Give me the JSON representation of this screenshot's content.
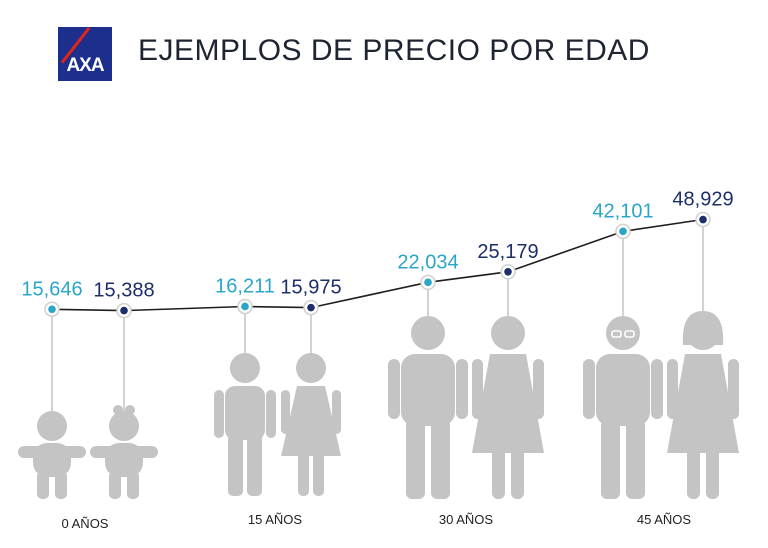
{
  "header": {
    "logo_text": "AXA",
    "title": "EJEMPLOS DE PRECIO POR EDAD"
  },
  "colors": {
    "female": "#2aa6c8",
    "male": "#1d2f6b",
    "line": "#1e1e1e",
    "figure": "#c4c4c4",
    "stem": "#c8c8c8",
    "brand": "#1d2f8c"
  },
  "chart_data": {
    "type": "line",
    "categories": [
      "0 AÑOS",
      "15 AÑOS",
      "30 AÑOS",
      "45 AÑOS"
    ],
    "points": [
      {
        "category": "0 AÑOS",
        "value": 15646,
        "label": "15,646",
        "color": "#2aa6c8",
        "figure": "baby"
      },
      {
        "category": "0 AÑOS",
        "value": 15388,
        "label": "15,388",
        "color": "#1d2f6b",
        "figure": "baby-bow"
      },
      {
        "category": "15 AÑOS",
        "value": 16211,
        "label": "16,211",
        "color": "#2aa6c8",
        "figure": "boy"
      },
      {
        "category": "15 AÑOS",
        "value": 15975,
        "label": "15,975",
        "color": "#1d2f6b",
        "figure": "girl"
      },
      {
        "category": "30 AÑOS",
        "value": 22034,
        "label": "22,034",
        "color": "#2aa6c8",
        "figure": "man"
      },
      {
        "category": "30 AÑOS",
        "value": 25179,
        "label": "25,179",
        "color": "#1d2f6b",
        "figure": "woman"
      },
      {
        "category": "45 AÑOS",
        "value": 42101,
        "label": "42,101",
        "color": "#2aa6c8",
        "figure": "man-glasses"
      },
      {
        "category": "45 AÑOS",
        "value": 48929,
        "label": "48,929",
        "color": "#1d2f6b",
        "figure": "woman-bob"
      }
    ]
  }
}
